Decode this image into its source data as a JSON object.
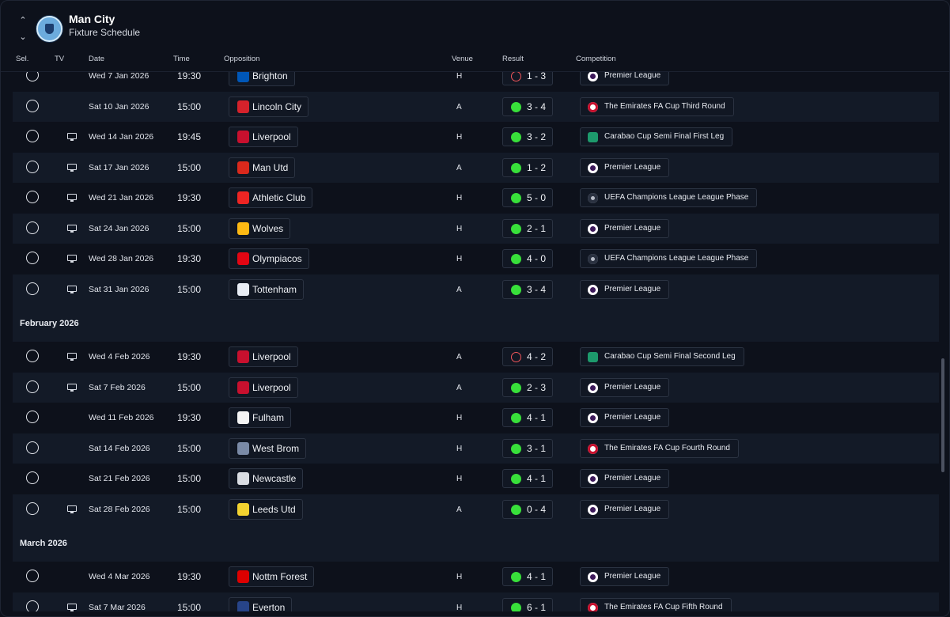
{
  "header": {
    "club_name": "Man City",
    "subtitle": "Fixture Schedule"
  },
  "columns": {
    "sel": "Sel.",
    "tv": "TV",
    "date": "Date",
    "time": "Time",
    "opposition": "Opposition",
    "venue": "Venue",
    "result": "Result",
    "competition": "Competition"
  },
  "colors": {
    "win": "#38e03a",
    "loss": "#f0555a",
    "background": "#0d111b",
    "row_alt": "#131a27"
  },
  "sections": [
    {
      "title": "February 2026"
    },
    {
      "title": "March 2026"
    }
  ],
  "fixtures": [
    {
      "tv": false,
      "date": "Wed 7 Jan 2026",
      "time": "19:30",
      "opponent": "Brighton",
      "venue": "H",
      "outcome": "loss",
      "score": "1 - 3",
      "competition": "Premier League",
      "comp_icon": "pl",
      "logo_color": "#0057b8"
    },
    {
      "tv": false,
      "date": "Sat 10 Jan 2026",
      "time": "15:00",
      "opponent": "Lincoln City",
      "venue": "A",
      "outcome": "win",
      "score": "3 - 4",
      "competition": "The Emirates FA Cup Third Round",
      "comp_icon": "fa",
      "logo_color": "#d5222b"
    },
    {
      "tv": true,
      "date": "Wed 14 Jan 2026",
      "time": "19:45",
      "opponent": "Liverpool",
      "venue": "H",
      "outcome": "win",
      "score": "3 - 2",
      "competition": "Carabao Cup Semi Final First Leg",
      "comp_icon": "cc",
      "logo_color": "#c8102e"
    },
    {
      "tv": true,
      "date": "Sat 17 Jan 2026",
      "time": "15:00",
      "opponent": "Man Utd",
      "venue": "A",
      "outcome": "win",
      "score": "1 - 2",
      "competition": "Premier League",
      "comp_icon": "pl",
      "logo_color": "#da291c"
    },
    {
      "tv": true,
      "date": "Wed 21 Jan 2026",
      "time": "19:30",
      "opponent": "Athletic Club",
      "venue": "H",
      "outcome": "win",
      "score": "5 - 0",
      "competition": "UEFA Champions League League Phase",
      "comp_icon": "ucl",
      "logo_color": "#ee2523"
    },
    {
      "tv": true,
      "date": "Sat 24 Jan 2026",
      "time": "15:00",
      "opponent": "Wolves",
      "venue": "H",
      "outcome": "win",
      "score": "2 - 1",
      "competition": "Premier League",
      "comp_icon": "pl",
      "logo_color": "#fdb913"
    },
    {
      "tv": true,
      "date": "Wed 28 Jan 2026",
      "time": "19:30",
      "opponent": "Olympiacos",
      "venue": "H",
      "outcome": "win",
      "score": "4 - 0",
      "competition": "UEFA Champions League League Phase",
      "comp_icon": "ucl",
      "logo_color": "#e30613"
    },
    {
      "tv": true,
      "date": "Sat 31 Jan 2026",
      "time": "15:00",
      "opponent": "Tottenham",
      "venue": "A",
      "outcome": "win",
      "score": "3 - 4",
      "competition": "Premier League",
      "comp_icon": "pl",
      "logo_color": "#e8ecf4"
    },
    {
      "tv": true,
      "date": "Wed 4 Feb 2026",
      "time": "19:30",
      "opponent": "Liverpool",
      "venue": "A",
      "outcome": "loss",
      "score": "4 - 2",
      "competition": "Carabao Cup Semi Final Second Leg",
      "comp_icon": "cc",
      "logo_color": "#c8102e"
    },
    {
      "tv": true,
      "date": "Sat 7 Feb 2026",
      "time": "15:00",
      "opponent": "Liverpool",
      "venue": "A",
      "outcome": "win",
      "score": "2 - 3",
      "competition": "Premier League",
      "comp_icon": "pl",
      "logo_color": "#c8102e"
    },
    {
      "tv": false,
      "date": "Wed 11 Feb 2026",
      "time": "19:30",
      "opponent": "Fulham",
      "venue": "H",
      "outcome": "win",
      "score": "4 - 1",
      "competition": "Premier League",
      "comp_icon": "pl",
      "logo_color": "#f4f4f4"
    },
    {
      "tv": false,
      "date": "Sat 14 Feb 2026",
      "time": "15:00",
      "opponent": "West Brom",
      "venue": "H",
      "outcome": "win",
      "score": "3 - 1",
      "competition": "The Emirates FA Cup Fourth Round",
      "comp_icon": "fa",
      "logo_color": "#7a8aa6"
    },
    {
      "tv": false,
      "date": "Sat 21 Feb 2026",
      "time": "15:00",
      "opponent": "Newcastle",
      "venue": "H",
      "outcome": "win",
      "score": "4 - 1",
      "competition": "Premier League",
      "comp_icon": "pl",
      "logo_color": "#d9dde3"
    },
    {
      "tv": true,
      "date": "Sat 28 Feb 2026",
      "time": "15:00",
      "opponent": "Leeds Utd",
      "venue": "A",
      "outcome": "win",
      "score": "0 - 4",
      "competition": "Premier League",
      "comp_icon": "pl",
      "logo_color": "#f2d230"
    },
    {
      "tv": false,
      "date": "Wed 4 Mar 2026",
      "time": "19:30",
      "opponent": "Nottm Forest",
      "venue": "H",
      "outcome": "win",
      "score": "4 - 1",
      "competition": "Premier League",
      "comp_icon": "pl",
      "logo_color": "#dd0000"
    },
    {
      "tv": true,
      "date": "Sat 7 Mar 2026",
      "time": "15:00",
      "opponent": "Everton",
      "venue": "H",
      "outcome": "win",
      "score": "6 - 1",
      "competition": "The Emirates FA Cup Fifth Round",
      "comp_icon": "fa",
      "logo_color": "#274488"
    }
  ]
}
